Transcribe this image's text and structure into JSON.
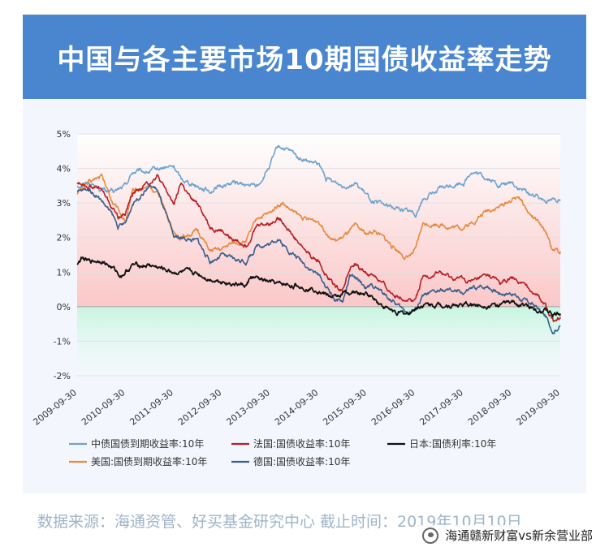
{
  "header": {
    "title": "中国与各主要市场10期国债收益率走势"
  },
  "footer": {
    "source": "数据来源：海通资管、好买基金研究中心 截止时间：2019年10月10日"
  },
  "watermark": {
    "text": "海通赣新财富vs新余营业部",
    "icon": "wechat-icon"
  },
  "chart_data": {
    "type": "line",
    "title": "中国与各主要市场10期国债收益率走势",
    "xlabel": "",
    "ylabel": "",
    "x_range": [
      2009.75,
      2019.75
    ],
    "ylim": [
      -2,
      5
    ],
    "y_ticks": [
      {
        "v": 5,
        "label": "5%"
      },
      {
        "v": 4,
        "label": "4%"
      },
      {
        "v": 3,
        "label": "3%"
      },
      {
        "v": 2,
        "label": "2%"
      },
      {
        "v": 1,
        "label": "1%"
      },
      {
        "v": 0,
        "label": "0%"
      },
      {
        "v": -1,
        "label": "-1%"
      },
      {
        "v": -2,
        "label": "-2%"
      }
    ],
    "x_ticks": [
      {
        "v": 2009.75,
        "label": "2009-09-30"
      },
      {
        "v": 2010.75,
        "label": "2010-09-30"
      },
      {
        "v": 2011.75,
        "label": "2011-09-30"
      },
      {
        "v": 2012.75,
        "label": "2012-09-30"
      },
      {
        "v": 2013.75,
        "label": "2013-09-30"
      },
      {
        "v": 2014.75,
        "label": "2014-09-30"
      },
      {
        "v": 2015.75,
        "label": "2015-09-30"
      },
      {
        "v": 2016.75,
        "label": "2016-09-30"
      },
      {
        "v": 2017.75,
        "label": "2017-09-30"
      },
      {
        "v": 2018.75,
        "label": "2018-09-30"
      },
      {
        "v": 2019.75,
        "label": "2019-09-30"
      }
    ],
    "legend_position": "bottom",
    "series": [
      {
        "name": "中债国债到期收益率:10年",
        "color": "#6ba3cf",
        "points": [
          [
            2009.75,
            3.5
          ],
          [
            2010.0,
            3.6
          ],
          [
            2010.25,
            3.4
          ],
          [
            2010.5,
            3.3
          ],
          [
            2010.75,
            3.5
          ],
          [
            2010.9,
            3.9
          ],
          [
            2011.25,
            3.9
          ],
          [
            2011.5,
            4.0
          ],
          [
            2011.75,
            4.05
          ],
          [
            2011.9,
            3.7
          ],
          [
            2012.25,
            3.5
          ],
          [
            2012.5,
            3.35
          ],
          [
            2012.75,
            3.5
          ],
          [
            2013.0,
            3.6
          ],
          [
            2013.25,
            3.5
          ],
          [
            2013.5,
            3.5
          ],
          [
            2013.75,
            4.1
          ],
          [
            2013.9,
            4.6
          ],
          [
            2014.0,
            4.6
          ],
          [
            2014.25,
            4.4
          ],
          [
            2014.5,
            4.2
          ],
          [
            2014.75,
            4.1
          ],
          [
            2014.9,
            3.7
          ],
          [
            2015.25,
            3.5
          ],
          [
            2015.5,
            3.6
          ],
          [
            2015.75,
            3.2
          ],
          [
            2015.9,
            3.0
          ],
          [
            2016.25,
            2.9
          ],
          [
            2016.5,
            2.8
          ],
          [
            2016.75,
            2.7
          ],
          [
            2016.9,
            3.1
          ],
          [
            2017.25,
            3.4
          ],
          [
            2017.5,
            3.5
          ],
          [
            2017.75,
            3.6
          ],
          [
            2017.9,
            3.9
          ],
          [
            2018.25,
            3.7
          ],
          [
            2018.5,
            3.5
          ],
          [
            2018.75,
            3.6
          ],
          [
            2018.9,
            3.4
          ],
          [
            2019.25,
            3.2
          ],
          [
            2019.5,
            3.1
          ],
          [
            2019.75,
            3.1
          ]
        ]
      },
      {
        "name": "法国:国债收益率:10年",
        "color": "#b81e23",
        "points": [
          [
            2009.75,
            3.6
          ],
          [
            2010.0,
            3.5
          ],
          [
            2010.25,
            3.4
          ],
          [
            2010.5,
            2.8
          ],
          [
            2010.6,
            2.6
          ],
          [
            2010.75,
            2.7
          ],
          [
            2010.9,
            3.3
          ],
          [
            2011.25,
            3.6
          ],
          [
            2011.4,
            3.8
          ],
          [
            2011.6,
            3.3
          ],
          [
            2011.75,
            3.0
          ],
          [
            2011.9,
            3.6
          ],
          [
            2012.1,
            3.1
          ],
          [
            2012.3,
            2.9
          ],
          [
            2012.5,
            2.3
          ],
          [
            2012.75,
            2.2
          ],
          [
            2012.9,
            2.0
          ],
          [
            2013.25,
            1.8
          ],
          [
            2013.5,
            2.4
          ],
          [
            2013.75,
            2.4
          ],
          [
            2013.9,
            2.6
          ],
          [
            2014.0,
            2.5
          ],
          [
            2014.25,
            2.0
          ],
          [
            2014.5,
            1.6
          ],
          [
            2014.75,
            1.3
          ],
          [
            2014.9,
            0.9
          ],
          [
            2015.1,
            0.6
          ],
          [
            2015.25,
            0.5
          ],
          [
            2015.4,
            1.2
          ],
          [
            2015.5,
            1.2
          ],
          [
            2015.75,
            0.95
          ],
          [
            2015.9,
            0.9
          ],
          [
            2016.25,
            0.4
          ],
          [
            2016.5,
            0.25
          ],
          [
            2016.75,
            0.2
          ],
          [
            2016.9,
            0.8
          ],
          [
            2017.25,
            1.0
          ],
          [
            2017.5,
            0.8
          ],
          [
            2017.75,
            0.8
          ],
          [
            2017.9,
            0.7
          ],
          [
            2018.25,
            0.9
          ],
          [
            2018.5,
            0.7
          ],
          [
            2018.75,
            0.8
          ],
          [
            2018.9,
            0.7
          ],
          [
            2019.25,
            0.4
          ],
          [
            2019.45,
            0.0
          ],
          [
            2019.6,
            -0.4
          ],
          [
            2019.75,
            -0.3
          ]
        ]
      },
      {
        "name": "日本:国债利率:10年",
        "color": "#111111",
        "points": [
          [
            2009.75,
            1.25
          ],
          [
            2009.85,
            1.4
          ],
          [
            2010.0,
            1.3
          ],
          [
            2010.25,
            1.35
          ],
          [
            2010.5,
            1.1
          ],
          [
            2010.65,
            0.9
          ],
          [
            2010.75,
            1.0
          ],
          [
            2010.9,
            1.2
          ],
          [
            2011.25,
            1.2
          ],
          [
            2011.5,
            1.1
          ],
          [
            2011.75,
            1.0
          ],
          [
            2011.9,
            1.0
          ],
          [
            2012.25,
            0.95
          ],
          [
            2012.5,
            0.8
          ],
          [
            2012.75,
            0.75
          ],
          [
            2012.9,
            0.7
          ],
          [
            2013.25,
            0.6
          ],
          [
            2013.35,
            0.85
          ],
          [
            2013.5,
            0.8
          ],
          [
            2013.75,
            0.7
          ],
          [
            2013.9,
            0.65
          ],
          [
            2014.25,
            0.6
          ],
          [
            2014.5,
            0.55
          ],
          [
            2014.75,
            0.5
          ],
          [
            2014.9,
            0.35
          ],
          [
            2015.1,
            0.25
          ],
          [
            2015.25,
            0.4
          ],
          [
            2015.5,
            0.4
          ],
          [
            2015.75,
            0.35
          ],
          [
            2015.9,
            0.25
          ],
          [
            2016.1,
            0.0
          ],
          [
            2016.4,
            -0.2
          ],
          [
            2016.6,
            -0.2
          ],
          [
            2016.75,
            -0.05
          ],
          [
            2016.9,
            0.05
          ],
          [
            2017.25,
            0.05
          ],
          [
            2017.5,
            0.05
          ],
          [
            2017.75,
            0.05
          ],
          [
            2017.9,
            0.05
          ],
          [
            2018.25,
            0.05
          ],
          [
            2018.5,
            0.05
          ],
          [
            2018.75,
            0.12
          ],
          [
            2018.9,
            0.05
          ],
          [
            2019.25,
            -0.05
          ],
          [
            2019.5,
            -0.15
          ],
          [
            2019.6,
            -0.25
          ],
          [
            2019.75,
            -0.2
          ]
        ]
      },
      {
        "name": "美国:国债到期收益率:10年",
        "color": "#e68a3f",
        "points": [
          [
            2009.75,
            3.3
          ],
          [
            2010.0,
            3.6
          ],
          [
            2010.25,
            3.8
          ],
          [
            2010.5,
            3.0
          ],
          [
            2010.75,
            2.5
          ],
          [
            2010.9,
            3.3
          ],
          [
            2011.25,
            3.5
          ],
          [
            2011.5,
            3.1
          ],
          [
            2011.75,
            2.1
          ],
          [
            2011.9,
            2.0
          ],
          [
            2012.25,
            2.2
          ],
          [
            2012.5,
            1.6
          ],
          [
            2012.75,
            1.65
          ],
          [
            2012.9,
            1.8
          ],
          [
            2013.25,
            1.9
          ],
          [
            2013.5,
            2.6
          ],
          [
            2013.75,
            2.7
          ],
          [
            2013.9,
            2.95
          ],
          [
            2014.0,
            3.0
          ],
          [
            2014.25,
            2.7
          ],
          [
            2014.5,
            2.5
          ],
          [
            2014.75,
            2.5
          ],
          [
            2014.9,
            2.2
          ],
          [
            2015.1,
            1.9
          ],
          [
            2015.25,
            2.0
          ],
          [
            2015.5,
            2.3
          ],
          [
            2015.75,
            2.1
          ],
          [
            2015.9,
            2.2
          ],
          [
            2016.25,
            1.8
          ],
          [
            2016.5,
            1.5
          ],
          [
            2016.6,
            1.4
          ],
          [
            2016.75,
            1.6
          ],
          [
            2016.9,
            2.4
          ],
          [
            2017.25,
            2.4
          ],
          [
            2017.5,
            2.3
          ],
          [
            2017.75,
            2.3
          ],
          [
            2017.9,
            2.4
          ],
          [
            2018.25,
            2.8
          ],
          [
            2018.5,
            2.9
          ],
          [
            2018.75,
            3.1
          ],
          [
            2018.9,
            3.2
          ],
          [
            2019.1,
            2.7
          ],
          [
            2019.25,
            2.5
          ],
          [
            2019.5,
            2.0
          ],
          [
            2019.6,
            1.6
          ],
          [
            2019.75,
            1.6
          ]
        ]
      },
      {
        "name": "德国:国债收益率:10年",
        "color": "#3a5f8d",
        "points": [
          [
            2009.75,
            3.3
          ],
          [
            2010.0,
            3.4
          ],
          [
            2010.25,
            3.1
          ],
          [
            2010.5,
            2.6
          ],
          [
            2010.6,
            2.3
          ],
          [
            2010.75,
            2.4
          ],
          [
            2010.9,
            3.0
          ],
          [
            2011.25,
            3.5
          ],
          [
            2011.4,
            3.4
          ],
          [
            2011.6,
            2.6
          ],
          [
            2011.75,
            2.0
          ],
          [
            2011.9,
            2.0
          ],
          [
            2012.25,
            1.9
          ],
          [
            2012.5,
            1.3
          ],
          [
            2012.75,
            1.5
          ],
          [
            2012.9,
            1.4
          ],
          [
            2013.25,
            1.3
          ],
          [
            2013.5,
            1.8
          ],
          [
            2013.75,
            1.8
          ],
          [
            2013.9,
            2.0
          ],
          [
            2014.0,
            1.8
          ],
          [
            2014.25,
            1.5
          ],
          [
            2014.5,
            1.2
          ],
          [
            2014.75,
            0.9
          ],
          [
            2014.9,
            0.6
          ],
          [
            2015.1,
            0.2
          ],
          [
            2015.25,
            0.15
          ],
          [
            2015.4,
            0.9
          ],
          [
            2015.5,
            0.8
          ],
          [
            2015.75,
            0.55
          ],
          [
            2015.9,
            0.6
          ],
          [
            2016.25,
            0.2
          ],
          [
            2016.5,
            -0.1
          ],
          [
            2016.6,
            -0.15
          ],
          [
            2016.75,
            -0.1
          ],
          [
            2016.9,
            0.3
          ],
          [
            2017.25,
            0.45
          ],
          [
            2017.5,
            0.45
          ],
          [
            2017.75,
            0.4
          ],
          [
            2017.9,
            0.5
          ],
          [
            2018.25,
            0.6
          ],
          [
            2018.5,
            0.4
          ],
          [
            2018.75,
            0.4
          ],
          [
            2018.9,
            0.25
          ],
          [
            2019.25,
            0.0
          ],
          [
            2019.45,
            -0.3
          ],
          [
            2019.6,
            -0.7
          ],
          [
            2019.75,
            -0.55
          ]
        ]
      }
    ]
  }
}
